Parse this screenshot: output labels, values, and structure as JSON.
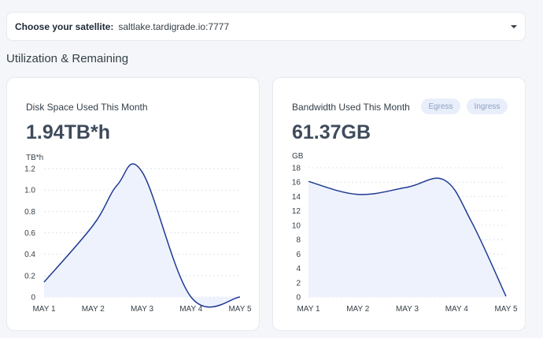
{
  "satellite": {
    "label": "Choose your satellite:",
    "value": "saltlake.tardigrade.io:7777",
    "dropdown_icon": "caret-down-icon"
  },
  "section": {
    "title": "Utilization & Remaining"
  },
  "disk_card": {
    "title": "Disk Space Used This Month",
    "value": "1.94TB*h"
  },
  "bandwidth_card": {
    "title": "Bandwidth Used This Month",
    "value": "61.37GB",
    "tabs": [
      {
        "label": "Egress"
      },
      {
        "label": "Ingress"
      }
    ]
  },
  "colors": {
    "line": "#1f3a93",
    "fill": "#eef2fc",
    "grid": "#dde2ea",
    "pill_bg": "#e8eefa",
    "pill_text": "#8f9fc4"
  },
  "chart_data": [
    {
      "type": "area",
      "ylabel": "TB*h",
      "ylim": [
        0,
        1.2
      ],
      "yticks": [
        "0",
        "0.2",
        "0.4",
        "0.6",
        "0.8",
        "1.0",
        "1.2"
      ],
      "xticks": [
        "MAY 1",
        "MAY 2",
        "MAY 3",
        "MAY 4",
        "MAY 5"
      ],
      "x": [
        "MAY 1",
        "MAY 2",
        "MAY 2.5",
        "MAY 3",
        "MAY 4",
        "MAY 5"
      ],
      "values": [
        0.14,
        0.67,
        1.05,
        1.17,
        0.0,
        0.0
      ]
    },
    {
      "type": "area",
      "ylabel": "GB",
      "ylim": [
        0,
        18
      ],
      "yticks": [
        "0",
        "2",
        "4",
        "6",
        "8",
        "10",
        "12",
        "14",
        "16",
        "18"
      ],
      "xticks": [
        "MAY 1",
        "MAY 2",
        "MAY 3",
        "MAY 4",
        "MAY 5"
      ],
      "x": [
        "MAY 1",
        "MAY 2",
        "MAY 3",
        "MAY 3.75",
        "MAY 4.3",
        "MAY 5"
      ],
      "values": [
        16.1,
        14.3,
        15.3,
        16.3,
        10.5,
        0.1
      ]
    }
  ]
}
